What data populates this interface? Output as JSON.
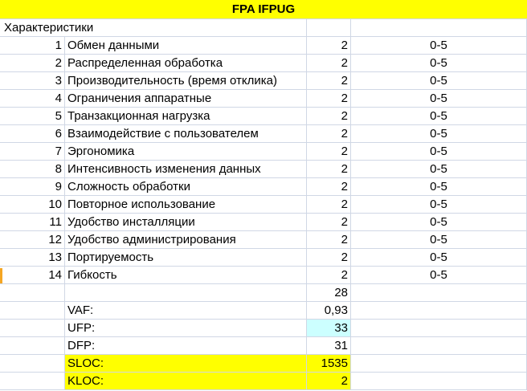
{
  "sheet": {
    "title": "FPA IFPUG",
    "subtitle": "Характеристики",
    "characteristics": [
      {
        "num": "1",
        "name": "Обмен данными",
        "value": "2",
        "range": "0-5"
      },
      {
        "num": "2",
        "name": "Распределенная обработка",
        "value": "2",
        "range": "0-5"
      },
      {
        "num": "3",
        "name": "Производительность (время отклика)",
        "value": "2",
        "range": "0-5"
      },
      {
        "num": "4",
        "name": "Ограничения аппаратные",
        "value": "2",
        "range": "0-5"
      },
      {
        "num": "5",
        "name": "Транзакционная нагрузка",
        "value": "2",
        "range": "0-5"
      },
      {
        "num": "6",
        "name": "Взаимодействие с пользователем",
        "value": "2",
        "range": "0-5"
      },
      {
        "num": "7",
        "name": "Эргономика",
        "value": "2",
        "range": "0-5"
      },
      {
        "num": "8",
        "name": "Интенсивность изменения данных",
        "value": "2",
        "range": "0-5"
      },
      {
        "num": "9",
        "name": "Сложность обработки",
        "value": "2",
        "range": "0-5"
      },
      {
        "num": "10",
        "name": "Повторное использование",
        "value": "2",
        "range": "0-5"
      },
      {
        "num": "11",
        "name": "Удобство инсталляции",
        "value": "2",
        "range": "0-5"
      },
      {
        "num": "12",
        "name": "Удобство администрирования",
        "value": "2",
        "range": "0-5"
      },
      {
        "num": "13",
        "name": "Портируемость",
        "value": "2",
        "range": "0-5"
      },
      {
        "num": "14",
        "name": "Гибкость",
        "value": "2",
        "range": "0-5"
      }
    ],
    "sum": "28",
    "metrics": [
      {
        "label": "VAF:",
        "value": "0,93",
        "highlight": "none"
      },
      {
        "label": "UFP:",
        "value": "33",
        "highlight": "cyan"
      },
      {
        "label": "DFP:",
        "value": "31",
        "highlight": "none"
      },
      {
        "label": "SLOC:",
        "value": "1535",
        "highlight": "yellow"
      },
      {
        "label": "KLOC:",
        "value": "2",
        "highlight": "yellow"
      }
    ],
    "colors": {
      "yellow": "#ffff00",
      "cyan": "#ccffff",
      "gridline": "#d0d7e5"
    }
  }
}
